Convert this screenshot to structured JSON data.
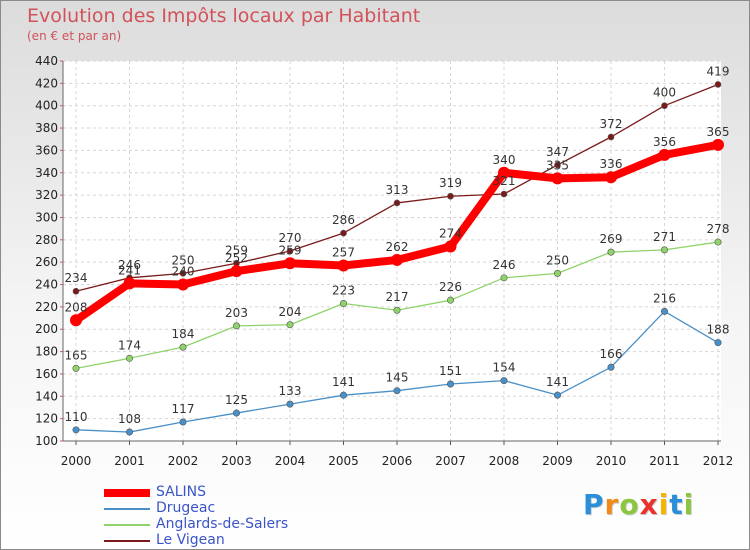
{
  "chart_data": {
    "type": "line",
    "title": "Evolution des Impôts locaux par Habitant",
    "subtitle": "(en € et par an)",
    "xlabel": "",
    "ylabel": "",
    "ylim": [
      100,
      440
    ],
    "y_ticks": [
      100,
      120,
      140,
      160,
      180,
      200,
      220,
      240,
      260,
      280,
      300,
      320,
      340,
      360,
      380,
      400,
      420,
      440
    ],
    "x": [
      "2000",
      "2001",
      "2002",
      "2003",
      "2004",
      "2005",
      "2006",
      "2007",
      "2008",
      "2009",
      "2010",
      "2011",
      "2012"
    ],
    "grid": true,
    "legend_position": "bottom-left",
    "series": [
      {
        "name": "Le Vigean",
        "color": "#7a1a1a",
        "values": [
          234,
          246,
          250,
          259,
          270,
          286,
          313,
          319,
          321,
          347,
          372,
          400,
          419
        ]
      },
      {
        "name": "Drugeac",
        "color": "#4a90c8",
        "values": [
          110,
          108,
          117,
          125,
          133,
          141,
          145,
          151,
          154,
          141,
          166,
          216,
          188
        ]
      },
      {
        "name": "Anglards-de-Salers",
        "color": "#8fd46a",
        "values": [
          165,
          174,
          184,
          203,
          204,
          223,
          217,
          226,
          246,
          250,
          269,
          271,
          278
        ]
      },
      {
        "name": "SALINS",
        "color": "#ff0000",
        "values": [
          208,
          241,
          240,
          252,
          259,
          257,
          262,
          274,
          340,
          335,
          336,
          356,
          365
        ]
      }
    ],
    "legend_order": [
      "SALINS",
      "Drugeac",
      "Anglards-de-Salers",
      "Le Vigean"
    ]
  },
  "logo": {
    "letters": [
      {
        "ch": "P",
        "color": "#2a8fd8"
      },
      {
        "ch": "r",
        "color": "#f08a1a"
      },
      {
        "ch": "o",
        "color": "#8cc63f"
      },
      {
        "ch": "x",
        "color": "#e8322c"
      },
      {
        "ch": "i",
        "color": "#f4b400"
      },
      {
        "ch": "t",
        "color": "#2a8fd8"
      },
      {
        "ch": "i",
        "color": "#8cc63f"
      }
    ]
  }
}
